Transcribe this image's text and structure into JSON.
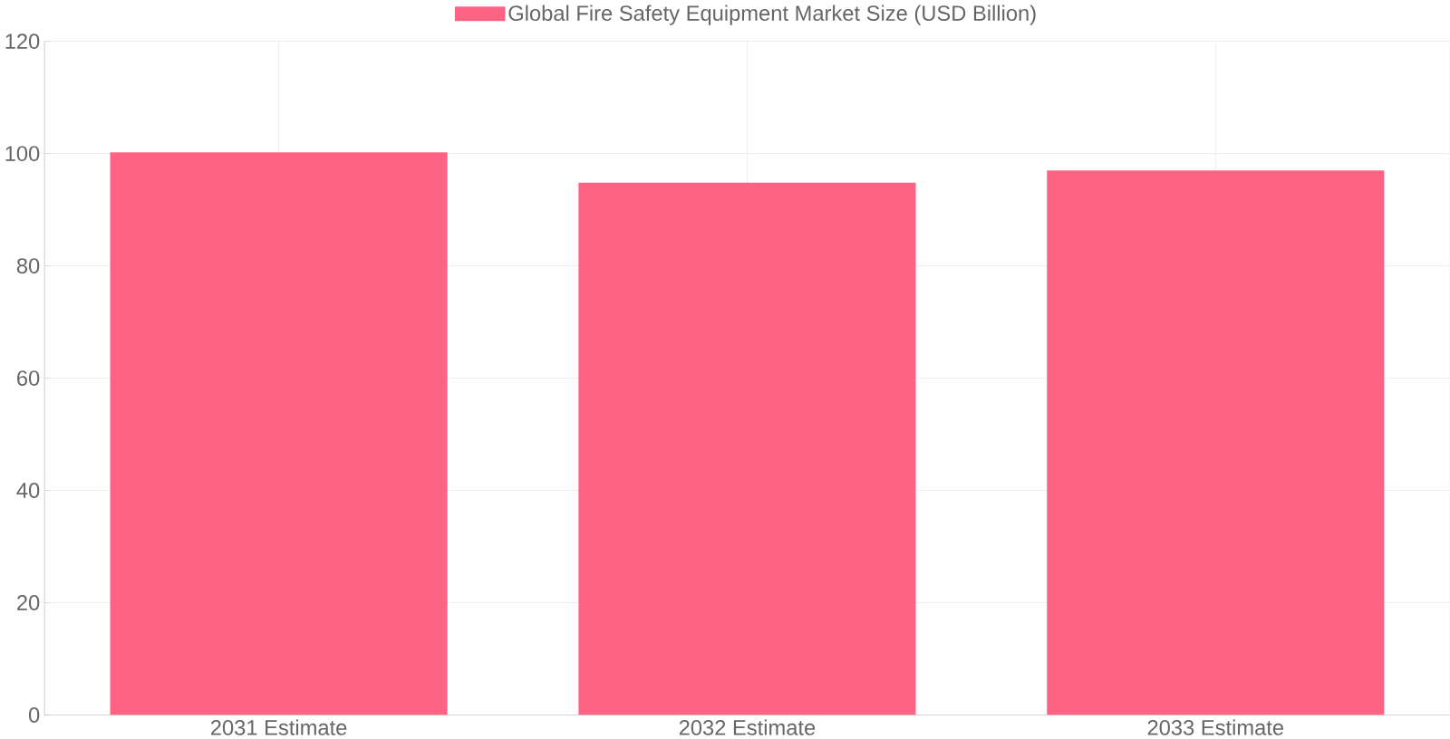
{
  "chart_data": {
    "type": "bar",
    "categories": [
      "2031 Estimate",
      "2032 Estimate",
      "2033 Estimate"
    ],
    "series": [
      {
        "name": "Global Fire Safety Equipment Market Size (USD Billion)",
        "color": "#ff6384",
        "values": [
          100.2,
          94.8,
          97.0
        ]
      }
    ],
    "ylim": [
      0,
      120
    ],
    "yticks": [
      0,
      20,
      40,
      60,
      80,
      100,
      120
    ],
    "grid": true,
    "legend": "top"
  }
}
